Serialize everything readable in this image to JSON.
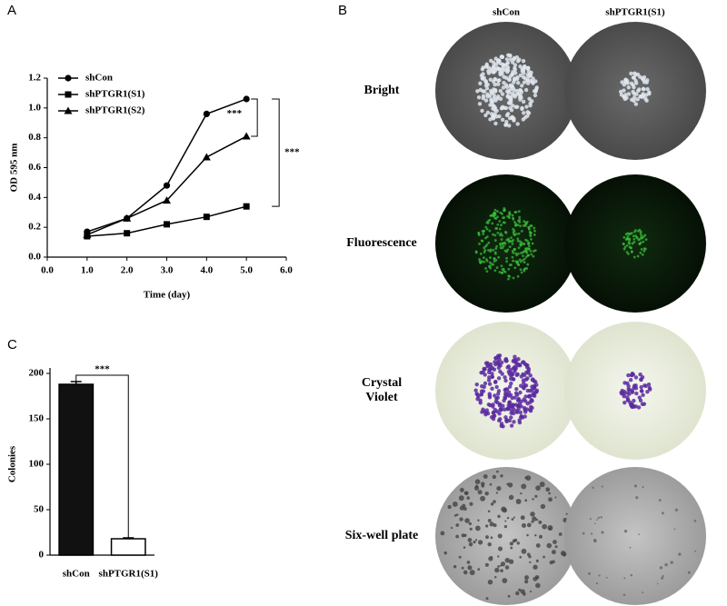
{
  "chart_data": [
    {
      "type": "line",
      "panel_label": "A",
      "xlabel": "Time (day)",
      "ylabel": "OD 595 nm",
      "x": [
        1,
        2,
        3,
        4,
        5
      ],
      "series": [
        {
          "name": "shCon",
          "color": "#000000",
          "marker": "circle",
          "values": [
            0.17,
            0.26,
            0.48,
            0.96,
            1.06
          ]
        },
        {
          "name": "shPTGR1(S1)",
          "color": "#000000",
          "marker": "square",
          "values": [
            0.14,
            0.16,
            0.22,
            0.27,
            0.34
          ]
        },
        {
          "name": "shPTGR1(S2)",
          "color": "#000000",
          "marker": "triangle",
          "values": [
            0.15,
            0.26,
            0.38,
            0.67,
            0.81
          ]
        }
      ],
      "xlim": [
        0,
        6
      ],
      "xticks": [
        {
          "value": 0,
          "label": "0.0"
        },
        {
          "value": 1,
          "label": "1.0"
        },
        {
          "value": 2,
          "label": "2.0"
        },
        {
          "value": 3,
          "label": "3.0"
        },
        {
          "value": 4,
          "label": "4.0"
        },
        {
          "value": 5,
          "label": "5.0"
        },
        {
          "value": 6,
          "label": "6.0"
        }
      ],
      "ylim": [
        0,
        1.2
      ],
      "yticks": [
        {
          "value": 0,
          "label": "0.0"
        },
        0.2,
        0.4,
        0.6,
        0.8,
        {
          "value": 1,
          "label": "1.0"
        },
        1.2
      ],
      "legend": "upper left",
      "annotations": [
        "***",
        "***"
      ]
    },
    {
      "type": "bar",
      "panel_label": "C",
      "ylabel": "Colonies",
      "categories": [
        "shCon",
        "shPTGR1(S1)"
      ],
      "values": [
        188,
        18
      ],
      "errors": [
        3,
        1
      ],
      "colors": [
        "#111111",
        "#ffffff"
      ],
      "ylim": [
        0,
        200
      ],
      "yticks": [
        0,
        50,
        100,
        150,
        200
      ],
      "annotations": [
        "***"
      ]
    }
  ],
  "image_panel": {
    "panel_label": "B",
    "columns": [
      "shCon",
      "shPTGR1(S1)"
    ],
    "rows": [
      "Bright",
      "Fluorescence",
      "Crystal Violet",
      "Six-well plate"
    ]
  }
}
